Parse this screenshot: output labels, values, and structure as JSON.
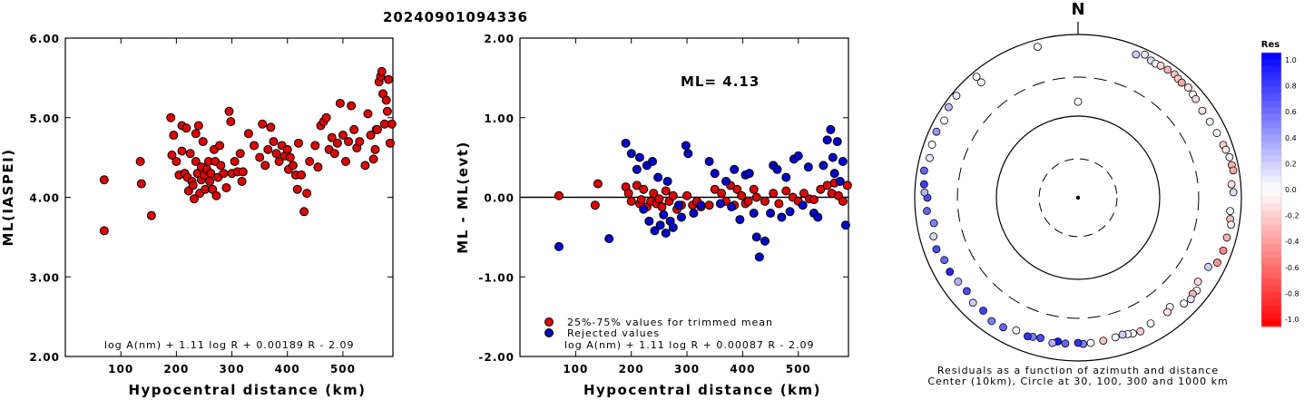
{
  "title": "20240901094336",
  "chart_data": [
    {
      "type": "scatter",
      "xlabel": "Hypocentral distance (km)",
      "ylabel": "ML(IASPEI)",
      "xlim": [
        0,
        590
      ],
      "ylim": [
        2.0,
        6.0
      ],
      "xticks": [
        "100",
        "200",
        "300",
        "400",
        "500"
      ],
      "yticks": [
        "2.00",
        "3.00",
        "4.00",
        "5.00",
        "6.00"
      ],
      "formula": "log A(nm) + 1.11 log R + 0.00189 R - 2.09",
      "series": [
        {
          "color": "#dd0000",
          "x": [
            70,
            70,
            135,
            137,
            155,
            190,
            192,
            195,
            200,
            205,
            210,
            210,
            215,
            218,
            220,
            222,
            225,
            228,
            230,
            232,
            235,
            235,
            238,
            240,
            242,
            245,
            245,
            248,
            250,
            252,
            255,
            258,
            260,
            262,
            265,
            268,
            270,
            272,
            275,
            278,
            280,
            285,
            290,
            295,
            298,
            300,
            305,
            310,
            315,
            318,
            320,
            330,
            340,
            350,
            355,
            360,
            365,
            370,
            375,
            380,
            385,
            390,
            395,
            400,
            402,
            405,
            410,
            415,
            418,
            420,
            425,
            430,
            435,
            440,
            450,
            455,
            460,
            465,
            470,
            475,
            480,
            485,
            490,
            495,
            500,
            505,
            510,
            515,
            520,
            525,
            530,
            540,
            545,
            550,
            555,
            558,
            560,
            562,
            565,
            568,
            570,
            572,
            575,
            578,
            580,
            582,
            585,
            588
          ],
          "y": [
            4.22,
            3.58,
            4.45,
            4.17,
            3.77,
            5.0,
            4.53,
            4.78,
            4.45,
            4.28,
            4.9,
            4.58,
            4.3,
            4.87,
            4.25,
            4.08,
            4.55,
            4.2,
            4.15,
            3.98,
            4.8,
            4.45,
            4.3,
            4.9,
            4.05,
            4.38,
            4.22,
            4.7,
            4.28,
            4.1,
            4.35,
            4.45,
            4.2,
            4.3,
            4.1,
            4.6,
            4.45,
            4.02,
            4.25,
            4.65,
            4.4,
            4.3,
            4.12,
            5.08,
            4.95,
            4.3,
            4.45,
            4.32,
            4.55,
            4.2,
            4.32,
            4.8,
            4.65,
            4.5,
            4.92,
            4.4,
            4.6,
            4.88,
            4.7,
            4.55,
            4.45,
            4.65,
            4.52,
            4.6,
            4.35,
            4.5,
            4.4,
            4.28,
            4.1,
            4.68,
            4.28,
            3.82,
            4.05,
            4.45,
            4.65,
            4.38,
            4.9,
            4.95,
            5.0,
            4.6,
            4.75,
            4.55,
            4.68,
            5.18,
            4.78,
            4.45,
            4.7,
            5.15,
            4.85,
            4.62,
            4.7,
            4.4,
            5.05,
            4.78,
            4.48,
            4.6,
            4.85,
            4.85,
            5.45,
            5.52,
            5.58,
            5.3,
            4.92,
            5.22,
            5.08,
            5.48,
            4.68,
            4.92
          ]
        }
      ]
    },
    {
      "type": "scatter",
      "xlabel": "Hypocentral distance (km)",
      "ylabel": "ML - ML(evt)",
      "xlim": [
        0,
        590
      ],
      "ylim": [
        -2.0,
        2.0
      ],
      "xticks": [
        "100",
        "200",
        "300",
        "400",
        "500"
      ],
      "yticks": [
        "-2.00",
        "-1.00",
        "0.00",
        "1.00",
        "2.00"
      ],
      "reference_line": 0.0,
      "ml_label": "ML= 4.13",
      "formula": "log A(nm) + 1.11 log R + 0.00087 R - 2.09",
      "series": [
        {
          "name": "25%-75% values for trimmed mean",
          "color": "#dd0000",
          "x": [
            70,
            135,
            140,
            190,
            195,
            200,
            210,
            215,
            218,
            222,
            228,
            235,
            240,
            245,
            250,
            255,
            262,
            268,
            275,
            282,
            290,
            300,
            310,
            318,
            325,
            340,
            350,
            362,
            370,
            378,
            385,
            390,
            398,
            405,
            410,
            420,
            425,
            440,
            455,
            465,
            478,
            490,
            500,
            510,
            520,
            528,
            540,
            552,
            560,
            565,
            572,
            580,
            588
          ],
          "y": [
            0.02,
            -0.1,
            0.17,
            0.13,
            0.05,
            -0.05,
            0.15,
            -0.08,
            -0.03,
            0.1,
            -0.12,
            -0.05,
            0.05,
            -0.08,
            -0.02,
            -0.12,
            0.08,
            -0.05,
            0.02,
            -0.15,
            -0.1,
            0.02,
            -0.1,
            -0.05,
            -0.12,
            -0.1,
            0.1,
            0.05,
            -0.05,
            0.15,
            -0.1,
            0.1,
            0.02,
            -0.08,
            -0.05,
            0.1,
            0.0,
            -0.05,
            0.05,
            -0.08,
            0.08,
            0.0,
            -0.05,
            0.05,
            -0.02,
            -0.03,
            0.1,
            0.15,
            0.05,
            0.18,
            0.02,
            -0.05,
            0.15
          ]
        },
        {
          "name": "Rejected values",
          "color": "#0000cc",
          "x": [
            70,
            160,
            190,
            200,
            210,
            215,
            222,
            228,
            232,
            238,
            242,
            248,
            252,
            258,
            262,
            265,
            270,
            275,
            285,
            290,
            298,
            302,
            312,
            325,
            340,
            350,
            360,
            370,
            380,
            385,
            395,
            405,
            412,
            420,
            425,
            430,
            440,
            450,
            455,
            462,
            470,
            478,
            485,
            492,
            500,
            508,
            518,
            528,
            535,
            545,
            552,
            558,
            562,
            565,
            570,
            575,
            580,
            585
          ],
          "y": [
            -0.62,
            -0.52,
            0.68,
            0.55,
            0.35,
            0.5,
            -0.15,
            0.4,
            -0.3,
            0.45,
            -0.42,
            0.25,
            -0.35,
            -0.22,
            -0.45,
            0.2,
            -0.3,
            -0.38,
            -0.1,
            -0.25,
            0.65,
            0.55,
            -0.2,
            -0.1,
            0.45,
            0.3,
            -0.08,
            0.2,
            -0.12,
            0.35,
            -0.28,
            0.28,
            0.3,
            -0.2,
            -0.5,
            -0.75,
            -0.55,
            -0.2,
            0.4,
            0.35,
            -0.25,
            0.25,
            -0.18,
            0.48,
            0.52,
            -0.1,
            0.38,
            -0.2,
            -0.25,
            0.4,
            0.72,
            0.85,
            0.5,
            0.3,
            0.7,
            0.2,
            0.45,
            -0.35
          ]
        }
      ]
    },
    {
      "type": "scatter",
      "subtype": "polar",
      "north_label": "N",
      "caption_line1": "Residuals as a function of azimuth and distance",
      "caption_line2": "Center (10km), Circle at 30, 100, 300 and 1000 km",
      "colorbar_title": "Res",
      "colorbar_ticks": [
        "1.0",
        "0.8",
        "0.6",
        "0.4",
        "0.2",
        "0.0",
        "-0.2",
        "-0.4",
        "-0.6",
        "-0.8",
        "-1.0"
      ],
      "ring_radii_km": [
        30,
        100,
        300,
        1000
      ],
      "points_azimuth_deg": [
        0,
        320,
        345,
        22,
        28,
        30,
        32,
        35,
        38,
        40,
        42,
        45,
        48,
        50,
        25,
        55,
        60,
        65,
        70,
        72,
        75,
        78,
        80,
        85,
        88,
        95,
        98,
        100,
        105,
        110,
        115,
        118,
        125,
        128,
        130,
        132,
        135,
        140,
        142,
        150,
        155,
        158,
        160,
        162,
        165,
        170,
        175,
        178,
        180,
        185,
        188,
        190,
        195,
        198,
        200,
        205,
        210,
        215,
        220,
        225,
        230,
        235,
        240,
        245,
        250,
        255,
        260,
        265,
        270,
        272,
        275,
        280,
        285,
        290,
        295,
        300,
        305,
        310,
        320
      ],
      "points_distance_km": [
        150,
        700,
        820,
        780,
        800,
        790,
        810,
        820,
        830,
        800,
        790,
        810,
        780,
        760,
        860,
        720,
        730,
        750,
        780,
        800,
        830,
        840,
        850,
        770,
        800,
        740,
        760,
        800,
        770,
        780,
        760,
        640,
        620,
        700,
        680,
        720,
        680,
        560,
        600,
        600,
        640,
        620,
        600,
        580,
        590,
        600,
        610,
        620,
        600,
        620,
        600,
        640,
        600,
        620,
        640,
        620,
        680,
        700,
        640,
        660,
        600,
        620,
        650,
        640,
        700,
        680,
        620,
        720,
        700,
        760,
        780,
        820,
        760,
        800,
        820,
        780,
        860,
        880,
        860
      ],
      "points_residual": [
        0.0,
        0.0,
        0.0,
        0.2,
        0.15,
        0.0,
        -0.15,
        -0.3,
        -0.25,
        -0.2,
        -0.35,
        -0.1,
        0.0,
        -0.15,
        0.1,
        -0.1,
        -0.05,
        0.0,
        -0.2,
        -0.1,
        0.0,
        -0.3,
        -0.35,
        -0.1,
        0.15,
        0.05,
        -0.25,
        0.0,
        -0.3,
        -0.45,
        -0.4,
        0.2,
        -0.15,
        0.0,
        -0.3,
        0.1,
        0.0,
        0.0,
        -0.1,
        0.0,
        -0.2,
        0.0,
        0.05,
        0.2,
        0.0,
        -0.25,
        0.0,
        0.5,
        0.8,
        0.6,
        0.9,
        0.3,
        0.7,
        0.5,
        0.8,
        0.0,
        0.6,
        0.5,
        0.75,
        0.2,
        0.7,
        0.3,
        0.85,
        0.6,
        0.7,
        0.15,
        0.5,
        0.6,
        0.7,
        0.3,
        0.75,
        0.6,
        0.1,
        0.0,
        0.4,
        0.0,
        0.25,
        0.1,
        0.0
      ]
    }
  ]
}
